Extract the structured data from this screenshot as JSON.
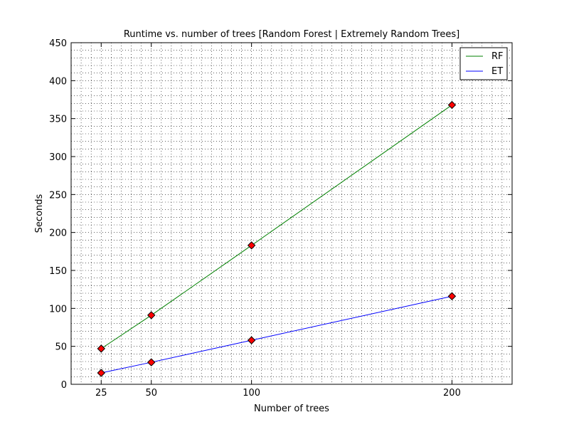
{
  "chart_data": {
    "type": "line",
    "title": "Runtime vs. number of trees [Random Forest | Extremely Random Trees]",
    "xlabel": "Number of trees",
    "ylabel": "Seconds",
    "x": [
      25,
      50,
      100,
      200
    ],
    "xticks": [
      25,
      50,
      100,
      200
    ],
    "xlim": [
      10,
      230
    ],
    "ylim": [
      0,
      450
    ],
    "yticks": [
      0,
      50,
      100,
      150,
      200,
      250,
      300,
      350,
      400,
      450
    ],
    "grid": true,
    "legend_position": "top-right",
    "marker": "diamond",
    "marker_color": "#ff0000",
    "series": [
      {
        "name": "RF",
        "color": "#008000",
        "values": [
          47,
          91,
          183,
          368
        ]
      },
      {
        "name": "ET",
        "color": "#0000ff",
        "values": [
          15,
          29,
          58,
          116
        ]
      }
    ]
  }
}
